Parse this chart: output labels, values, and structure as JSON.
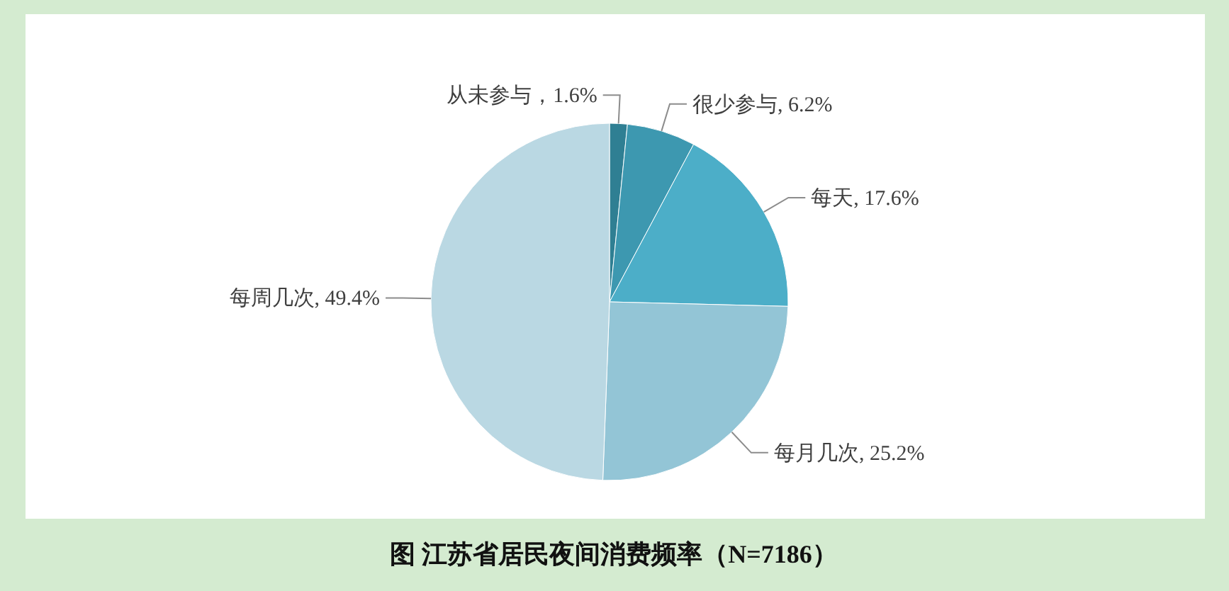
{
  "chart_data": {
    "type": "pie",
    "title": "图  江苏省居民夜间消费频率（N=7186）",
    "categories": [
      "从未参与",
      "很少参与",
      "每天",
      "每月几次",
      "每周几次"
    ],
    "values": [
      1.6,
      6.2,
      17.6,
      25.2,
      49.4
    ],
    "value_labels": [
      "，1.6%",
      ", 6.2%",
      ", 17.6%",
      ", 25.2%",
      ", 49.4%"
    ],
    "colors": [
      "#2f7f93",
      "#3d98b0",
      "#4caec8",
      "#93c5d6",
      "#bad8e3"
    ]
  }
}
